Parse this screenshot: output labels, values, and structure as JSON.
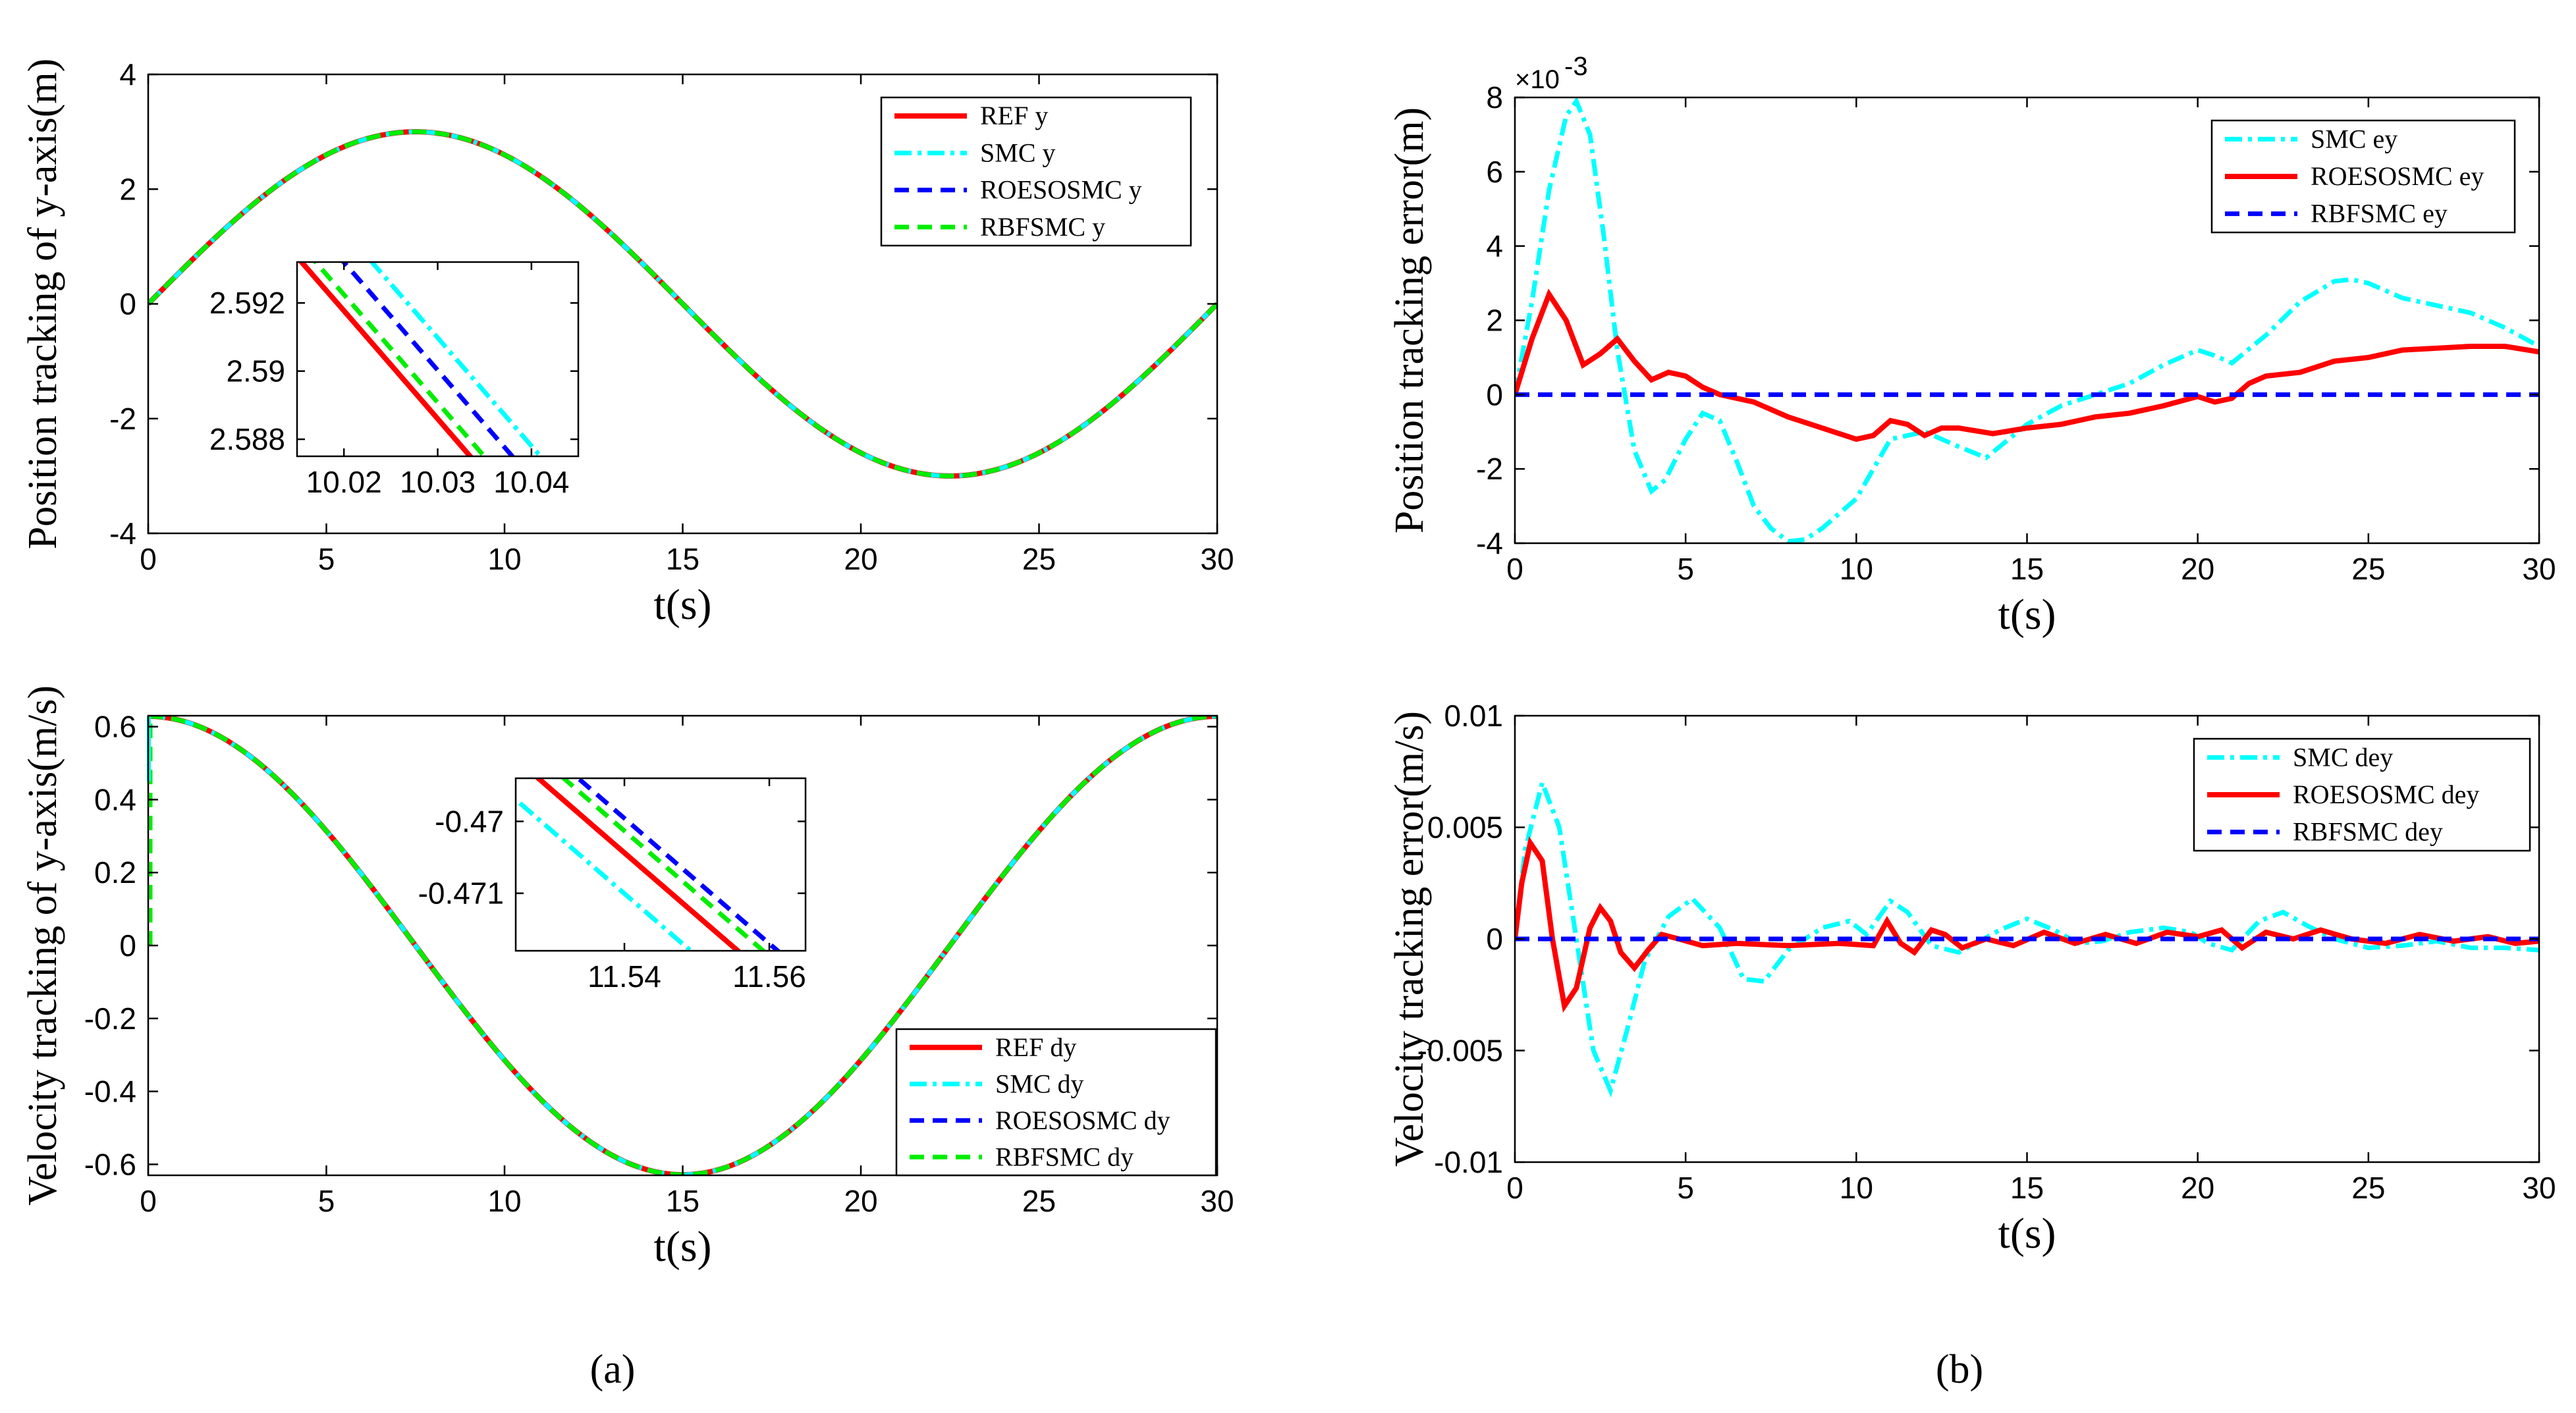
{
  "colors": {
    "ref": "#ff0000",
    "smc": "#00ffff",
    "roesosmc": "#0000ff",
    "rbfsmc": "#00ee00"
  },
  "panel_labels": {
    "a": "(a)",
    "b": "(b)"
  },
  "chart_data": [
    {
      "type": "line",
      "xlabel": "t(s)",
      "ylabel": "Position tracking of y-axis(m)",
      "xlim": [
        0,
        30
      ],
      "ylim": [
        -4,
        4
      ],
      "xticks": [
        0,
        5,
        10,
        15,
        20,
        25,
        30
      ],
      "yticks": [
        -4,
        -2,
        0,
        2,
        4
      ],
      "legend": "top-right",
      "series": [
        {
          "name": "REF y",
          "color": "#ff0000",
          "style": "solid",
          "func": "pos"
        },
        {
          "name": "SMC y",
          "color": "#00ffff",
          "style": "dashdot",
          "func": "pos"
        },
        {
          "name": "ROESOSMC y",
          "color": "#0000ff",
          "style": "dashed",
          "func": "pos"
        },
        {
          "name": "RBFSMC y",
          "color": "#00ee00",
          "style": "dashed",
          "func": "pos"
        }
      ],
      "inset": {
        "xlim": [
          10.015,
          10.045
        ],
        "ylim": [
          2.5875,
          2.5932
        ],
        "xticks": [
          10.02,
          10.03,
          10.04
        ],
        "yticks": [
          2.588,
          2.59,
          2.592
        ],
        "offsets": [
          0,
          0.0075,
          0.0045,
          0.0015
        ]
      }
    },
    {
      "type": "line",
      "xlabel": "t(s)",
      "ylabel": "Position tracking error(m)",
      "xlim": [
        0,
        30
      ],
      "ylim": [
        -4,
        8
      ],
      "xticks": [
        0,
        5,
        10,
        15,
        20,
        25,
        30
      ],
      "yticks": [
        -4,
        -2,
        0,
        2,
        4,
        6,
        8
      ],
      "y_multiplier": "×10",
      "y_exponent": "-3",
      "legend": "top-right",
      "series": [
        {
          "name": "SMC ey",
          "color": "#00ffff",
          "style": "dashdot",
          "x": [
            0,
            0.5,
            1,
            1.5,
            1.8,
            2.2,
            2.6,
            3,
            3.5,
            4,
            4.4,
            5,
            5.5,
            6,
            6.5,
            7,
            7.5,
            8,
            8.5,
            9,
            10,
            11,
            12,
            13,
            13.8,
            15,
            16,
            17,
            18,
            19,
            20,
            20.5,
            21,
            22,
            23,
            24,
            24.5,
            25,
            26,
            27,
            28,
            29,
            30
          ],
          "y": [
            0,
            2.5,
            5.5,
            7.5,
            7.9,
            7,
            4.3,
            1.2,
            -1.5,
            -2.6,
            -2.3,
            -1.2,
            -0.5,
            -0.7,
            -1.8,
            -3,
            -3.6,
            -3.95,
            -3.9,
            -3.6,
            -2.8,
            -1.2,
            -1,
            -1.4,
            -1.7,
            -0.8,
            -0.3,
            0,
            0.3,
            0.8,
            1.2,
            1.05,
            0.85,
            1.6,
            2.5,
            3.05,
            3.1,
            3,
            2.6,
            2.4,
            2.2,
            1.8,
            1.3
          ]
        },
        {
          "name": "ROESOSMC ey",
          "color": "#ff0000",
          "style": "solid",
          "x": [
            0,
            0.5,
            1,
            1.5,
            2,
            2.5,
            3,
            3.5,
            4,
            4.5,
            5,
            5.5,
            6,
            7,
            8,
            9,
            10,
            10.5,
            11,
            11.5,
            12,
            12.5,
            13,
            14,
            15,
            16,
            17,
            18,
            19,
            20,
            20.5,
            21,
            21.5,
            22,
            23,
            24,
            25,
            26,
            27,
            28,
            29,
            30
          ],
          "y": [
            0,
            1.5,
            2.7,
            2,
            0.8,
            1.1,
            1.5,
            0.9,
            0.4,
            0.6,
            0.5,
            0.2,
            0,
            -0.2,
            -0.6,
            -0.9,
            -1.2,
            -1.1,
            -0.7,
            -0.8,
            -1.1,
            -0.9,
            -0.9,
            -1.05,
            -0.9,
            -0.8,
            -0.6,
            -0.5,
            -0.3,
            -0.05,
            -0.2,
            -0.1,
            0.3,
            0.5,
            0.6,
            0.9,
            1,
            1.2,
            1.25,
            1.3,
            1.3,
            1.15
          ]
        },
        {
          "name": "RBFSMC ey",
          "color": "#0000ff",
          "style": "dashed",
          "x": [
            0,
            30
          ],
          "y": [
            0,
            0
          ]
        }
      ]
    },
    {
      "type": "line",
      "xlabel": "t(s)",
      "ylabel": "Velocity tracking of y-axis(m/s)",
      "xlim": [
        0,
        30
      ],
      "ylim": [
        -0.63,
        0.63
      ],
      "xticks": [
        0,
        5,
        10,
        15,
        20,
        25,
        30
      ],
      "yticks": [
        -0.6,
        -0.4,
        -0.2,
        0,
        0.2,
        0.4,
        0.6
      ],
      "legend": "bottom-right",
      "series": [
        {
          "name": "REF dy",
          "color": "#ff0000",
          "style": "solid",
          "func": "vel"
        },
        {
          "name": "SMC dy",
          "color": "#00ffff",
          "style": "dashdot",
          "func": "vel"
        },
        {
          "name": "ROESOSMC dy",
          "color": "#0000ff",
          "style": "dashed",
          "func": "vel"
        },
        {
          "name": "RBFSMC dy",
          "color": "#00ee00",
          "style": "dashed",
          "func": "vel"
        }
      ],
      "inset": {
        "xlim": [
          11.525,
          11.565
        ],
        "ylim": [
          -0.4718,
          -0.4694
        ],
        "xticks": [
          11.54,
          11.56
        ],
        "yticks": [
          -0.47,
          -0.471
        ],
        "offsets": [
          0,
          -0.0065,
          0.0055,
          0.0035
        ]
      }
    },
    {
      "type": "line",
      "xlabel": "t(s)",
      "ylabel": "Velocity tracking error(m/s)",
      "xlim": [
        0,
        30
      ],
      "ylim": [
        -0.01,
        0.01
      ],
      "xticks": [
        0,
        5,
        10,
        15,
        20,
        25,
        30
      ],
      "yticks": [
        -0.01,
        -0.005,
        0,
        0.005,
        0.01
      ],
      "legend": "top-right",
      "series": [
        {
          "name": "SMC dey",
          "color": "#00ffff",
          "style": "dashdot",
          "x": [
            0,
            0.3,
            0.8,
            1.3,
            1.8,
            2.3,
            2.8,
            3.3,
            3.8,
            4.5,
            5.2,
            6,
            6.7,
            7.3,
            8,
            9,
            9.8,
            10.3,
            11,
            11.5,
            12.2,
            13,
            13.5,
            14.2,
            15,
            15.8,
            16.5,
            17.2,
            18,
            19,
            19.8,
            20.3,
            21,
            21.8,
            22.5,
            23.2,
            24,
            25,
            26,
            27,
            28,
            29,
            30
          ],
          "y": [
            0,
            0.004,
            0.007,
            0.005,
            0.0,
            -0.005,
            -0.0068,
            -0.004,
            -0.001,
            0.001,
            0.0018,
            0.0005,
            -0.0018,
            -0.0019,
            -0.0005,
            0.0005,
            0.0008,
            0.0002,
            0.0017,
            0.0012,
            -0.0003,
            -0.0006,
            -0.0002,
            0.0004,
            0.0009,
            0.0004,
            -0.0002,
            -0.0001,
            0.0003,
            0.0005,
            0.0003,
            -0.0002,
            -0.0005,
            0.0008,
            0.0012,
            0.0006,
            0.0,
            -0.0004,
            -0.0003,
            -0.0001,
            -0.0004,
            -0.0004,
            -0.0005
          ]
        },
        {
          "name": "ROESOSMC dey",
          "color": "#ff0000",
          "style": "solid",
          "x": [
            0,
            0.2,
            0.45,
            0.8,
            1.1,
            1.45,
            1.8,
            2.2,
            2.5,
            2.8,
            3.1,
            3.5,
            3.9,
            4.3,
            4.8,
            5.5,
            6.5,
            8,
            9.5,
            10.5,
            10.9,
            11.3,
            11.7,
            12.2,
            12.6,
            13.1,
            13.8,
            14.6,
            15.5,
            16.4,
            17.3,
            18.2,
            19.1,
            20,
            20.7,
            21.3,
            22,
            22.8,
            23.6,
            24.5,
            25.5,
            26.5,
            27.5,
            28.5,
            29.3,
            30
          ],
          "y": [
            0,
            0.0025,
            0.0043,
            0.0035,
            0.0,
            -0.003,
            -0.0022,
            0.0005,
            0.0014,
            0.0008,
            -0.0006,
            -0.0013,
            -0.0005,
            0.0002,
            0.0,
            -0.0003,
            -0.0002,
            -0.0003,
            -0.0002,
            -0.0003,
            0.0008,
            -0.0002,
            -0.0006,
            0.0004,
            0.0002,
            -0.0004,
            0.0,
            -0.0003,
            0.0003,
            -0.0002,
            0.0002,
            -0.0002,
            0.0003,
            0.0001,
            0.0004,
            -0.0004,
            0.0003,
            0.0,
            0.0004,
            0.0,
            -0.0002,
            0.0002,
            -0.0001,
            0.0001,
            -0.0002,
            -0.0001
          ]
        },
        {
          "name": "RBFSMC dey",
          "color": "#0000ff",
          "style": "dashed",
          "x": [
            0,
            30
          ],
          "y": [
            0,
            0
          ]
        }
      ]
    }
  ]
}
